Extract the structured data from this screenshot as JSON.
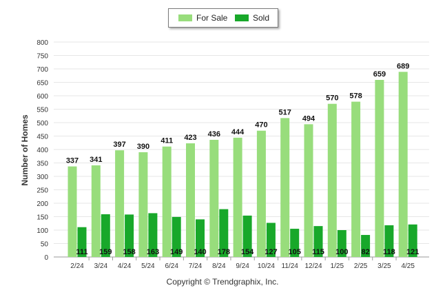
{
  "chart_data": {
    "type": "bar",
    "categories": [
      "2/24",
      "3/24",
      "4/24",
      "5/24",
      "6/24",
      "7/24",
      "8/24",
      "9/24",
      "10/24",
      "11/24",
      "12/24",
      "1/25",
      "2/25",
      "3/25",
      "4/25"
    ],
    "series": [
      {
        "name": "For Sale",
        "color": "#98dd7c",
        "values": [
          337,
          341,
          397,
          390,
          411,
          423,
          436,
          444,
          470,
          517,
          494,
          570,
          578,
          659,
          689
        ]
      },
      {
        "name": "Sold",
        "color": "#18a82a",
        "values": [
          111,
          159,
          158,
          163,
          149,
          140,
          178,
          154,
          127,
          105,
          115,
          100,
          82,
          118,
          121
        ]
      }
    ],
    "ylabel": "Number of Homes",
    "yticks": [
      0,
      50,
      100,
      150,
      200,
      250,
      300,
      350,
      400,
      450,
      500,
      550,
      600,
      650,
      700,
      750,
      800
    ],
    "ylim": [
      0,
      800
    ],
    "legend_position": "top-center",
    "grid": true
  },
  "footer": {
    "copyright": "Copyright © Trendgraphix, Inc."
  }
}
